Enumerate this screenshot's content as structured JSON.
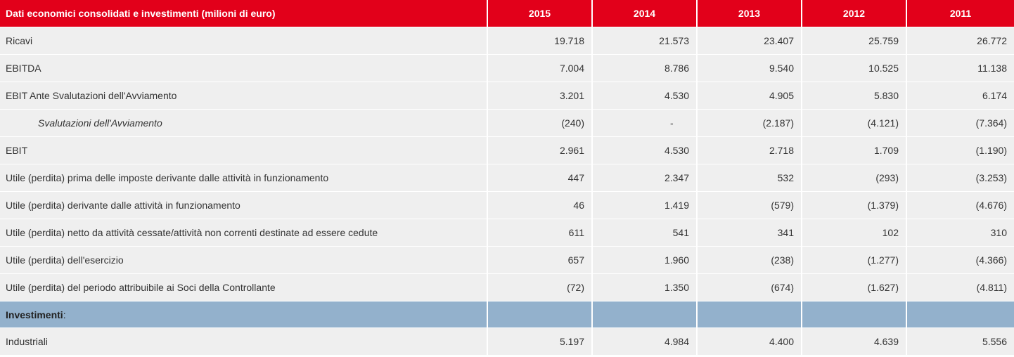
{
  "header": {
    "title": "Dati economici consolidati e investimenti (milioni di euro)",
    "years": [
      "2015",
      "2014",
      "2013",
      "2012",
      "2011"
    ]
  },
  "rows": [
    {
      "label": "Ricavi",
      "values": [
        "19.718",
        "21.573",
        "23.407",
        "25.759",
        "26.772"
      ]
    },
    {
      "label": "EBITDA",
      "values": [
        "7.004",
        "8.786",
        "9.540",
        "10.525",
        "11.138"
      ]
    },
    {
      "label": "EBIT Ante Svalutazioni dell'Avviamento",
      "values": [
        "3.201",
        "4.530",
        "4.905",
        "5.830",
        "6.174"
      ]
    },
    {
      "label": "Svalutazioni dell'Avviamento",
      "values": [
        "(240)",
        "-",
        "(2.187)",
        "(4.121)",
        "(7.364)"
      ]
    },
    {
      "label": "EBIT",
      "values": [
        "2.961",
        "4.530",
        "2.718",
        "1.709",
        "(1.190)"
      ]
    },
    {
      "label": "Utile (perdita)  prima delle imposte derivante dalle attività in funzionamento",
      "values": [
        "447",
        "2.347",
        "532",
        "(293)",
        "(3.253)"
      ]
    },
    {
      "label": "Utile (perdita) derivante dalle attività in funzionamento",
      "values": [
        "46",
        "1.419",
        "(579)",
        "(1.379)",
        "(4.676)"
      ]
    },
    {
      "label": "Utile (perdita) netto da attività cessate/attività non correnti destinate ad essere cedute",
      "values": [
        "611",
        "541",
        "341",
        "102",
        "310"
      ]
    },
    {
      "label": "Utile (perdita) dell'esercizio",
      "values": [
        "657",
        "1.960",
        "(238)",
        "(1.277)",
        "(4.366)"
      ]
    },
    {
      "label": "Utile (perdita) del periodo attribuibile ai Soci della Controllante",
      "values": [
        "(72)",
        "1.350",
        "(674)",
        "(1.627)",
        "(4.811)"
      ]
    }
  ],
  "section": {
    "label": "Investimenti",
    "suffix": ":"
  },
  "section_rows": [
    {
      "label": "Industriali",
      "values": [
        "5.197",
        "4.984",
        "4.400",
        "4.639",
        "5.556"
      ]
    }
  ],
  "colors": {
    "header": "#e2001a",
    "row": "#efefef",
    "section": "#93b1cc"
  }
}
